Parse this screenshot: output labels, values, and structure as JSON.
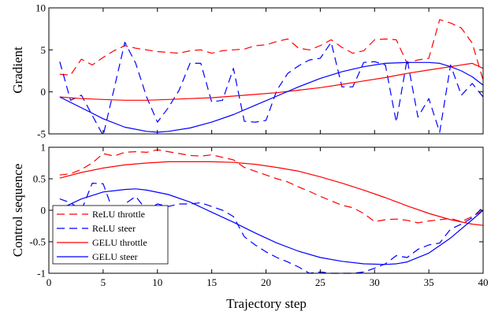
{
  "chart_data": [
    {
      "type": "line",
      "ylabel": "Gradient",
      "xlim": [
        0,
        40
      ],
      "ylim": [
        -5,
        10
      ],
      "x_ticks": [
        0,
        5,
        10,
        15,
        20,
        25,
        30,
        35,
        40
      ],
      "x_tick_labels": [
        "",
        "",
        "",
        "",
        "",
        "",
        "",
        "",
        ""
      ],
      "y_ticks": [
        -5,
        0,
        5,
        10
      ],
      "y_tick_labels": [
        "-5",
        "0",
        "5",
        "10"
      ],
      "series": [
        {
          "name": "ReLU throttle",
          "color": "#ff0000",
          "dash": "dashed",
          "x": [
            1,
            2,
            3,
            4,
            5,
            6,
            7,
            8,
            9,
            10,
            11,
            12,
            13,
            14,
            15,
            16,
            17,
            18,
            19,
            20,
            21,
            22,
            23,
            24,
            25,
            26,
            27,
            28,
            29,
            30,
            31,
            32,
            33,
            34,
            35,
            36,
            37,
            38,
            39,
            40
          ],
          "y": [
            2.1,
            2.0,
            3.9,
            3.2,
            4.1,
            4.9,
            5.5,
            5.2,
            5.0,
            4.8,
            4.7,
            4.6,
            4.9,
            5.0,
            4.6,
            4.9,
            5.0,
            5.1,
            5.5,
            5.6,
            6.0,
            6.3,
            5.2,
            5.0,
            5.5,
            6.2,
            5.3,
            4.6,
            4.9,
            6.2,
            6.3,
            6.2,
            3.4,
            3.8,
            4.0,
            8.6,
            8.2,
            7.6,
            5.8,
            1.4
          ]
        },
        {
          "name": "ReLU steer",
          "color": "#0000ff",
          "dash": "dashed",
          "x": [
            1,
            2,
            3,
            4,
            5,
            6,
            7,
            8,
            9,
            10,
            11,
            12,
            13,
            14,
            15,
            16,
            17,
            18,
            19,
            20,
            21,
            22,
            23,
            24,
            25,
            26,
            27,
            28,
            29,
            30,
            31,
            32,
            33,
            34,
            35,
            36,
            37,
            38,
            39,
            40
          ],
          "y": [
            3.6,
            -1.0,
            -0.4,
            -2.8,
            -5.2,
            0.3,
            5.9,
            3.4,
            -0.6,
            -3.6,
            -1.9,
            0.2,
            3.4,
            3.4,
            -1.2,
            -1.0,
            2.8,
            -3.5,
            -3.6,
            -3.4,
            0.2,
            2.2,
            3.1,
            3.8,
            4.0,
            5.9,
            0.6,
            0.6,
            3.5,
            3.6,
            3.2,
            -3.6,
            3.9,
            -3.0,
            -0.8,
            -4.8,
            3.2,
            -0.4,
            1.0,
            -0.6
          ]
        },
        {
          "name": "GELU throttle",
          "color": "#ff0000",
          "dash": "solid",
          "x": [
            1,
            3,
            5,
            7,
            9,
            11,
            13,
            15,
            17,
            19,
            21,
            23,
            25,
            27,
            29,
            31,
            33,
            35,
            37,
            39,
            40
          ],
          "y": [
            -0.6,
            -0.8,
            -0.9,
            -1.0,
            -1.0,
            -0.9,
            -0.8,
            -0.7,
            -0.5,
            -0.3,
            -0.1,
            0.2,
            0.5,
            0.9,
            1.3,
            1.7,
            2.2,
            2.6,
            3.0,
            3.4,
            2.8
          ]
        },
        {
          "name": "GELU steer",
          "color": "#0000ff",
          "dash": "solid",
          "x": [
            1,
            3,
            5,
            7,
            9,
            10,
            11,
            13,
            15,
            17,
            19,
            21,
            23,
            25,
            27,
            29,
            31,
            33,
            35,
            36,
            37,
            38,
            39,
            40
          ],
          "y": [
            -0.6,
            -1.9,
            -3.2,
            -4.2,
            -4.7,
            -4.8,
            -4.7,
            -4.3,
            -3.6,
            -2.7,
            -1.6,
            -0.5,
            0.6,
            1.6,
            2.4,
            3.0,
            3.4,
            3.5,
            3.5,
            3.4,
            3.0,
            2.5,
            1.8,
            0.8
          ]
        }
      ]
    },
    {
      "type": "line",
      "ylabel": "Control sequence",
      "xlabel": "Trajectory step",
      "xlim": [
        0,
        40
      ],
      "ylim": [
        -1,
        1
      ],
      "x_ticks": [
        0,
        5,
        10,
        15,
        20,
        25,
        30,
        35,
        40
      ],
      "x_tick_labels": [
        "0",
        "5",
        "10",
        "15",
        "20",
        "25",
        "30",
        "35",
        "40"
      ],
      "y_ticks": [
        -1,
        -0.5,
        0,
        0.5,
        1
      ],
      "y_tick_labels": [
        "-1",
        "-0.5",
        "0",
        "0.5",
        "1"
      ],
      "legend": {
        "position": "lower-left",
        "entries": [
          "ReLU throttle",
          "ReLU steer",
          "GELU throttle",
          "GELU steer"
        ]
      },
      "series": [
        {
          "name": "ReLU throttle",
          "color": "#ff0000",
          "dash": "dashed",
          "x": [
            1,
            2,
            3,
            4,
            5,
            6,
            7,
            8,
            9,
            10,
            11,
            12,
            13,
            14,
            15,
            16,
            17,
            18,
            19,
            20,
            21,
            22,
            23,
            24,
            25,
            26,
            27,
            28,
            29,
            30,
            31,
            32,
            33,
            34,
            35,
            36,
            37,
            38,
            39,
            40
          ],
          "y": [
            0.56,
            0.58,
            0.65,
            0.75,
            0.9,
            0.86,
            0.92,
            0.93,
            0.92,
            0.96,
            0.93,
            0.9,
            0.87,
            0.86,
            0.88,
            0.84,
            0.8,
            0.68,
            0.62,
            0.56,
            0.5,
            0.45,
            0.37,
            0.3,
            0.22,
            0.15,
            0.08,
            0.04,
            -0.05,
            -0.18,
            -0.15,
            -0.14,
            -0.16,
            -0.2,
            -0.17,
            -0.15,
            -0.13,
            -0.18,
            -0.1,
            0.0
          ]
        },
        {
          "name": "ReLU steer",
          "color": "#0000ff",
          "dash": "dashed",
          "x": [
            1,
            2,
            3,
            4,
            5,
            6,
            7,
            8,
            9,
            10,
            11,
            12,
            13,
            14,
            15,
            16,
            17,
            18,
            19,
            20,
            21,
            22,
            23,
            24,
            25,
            26,
            27,
            28,
            29,
            30,
            31,
            32,
            33,
            34,
            35,
            36,
            37,
            38,
            39,
            40
          ],
          "y": [
            0.18,
            0.12,
            0.0,
            0.43,
            0.42,
            -0.05,
            0.1,
            0.22,
            0.0,
            0.1,
            0.06,
            0.1,
            0.1,
            0.12,
            0.06,
            0.0,
            -0.1,
            -0.42,
            -0.55,
            -0.66,
            -0.75,
            -0.82,
            -0.9,
            -1.0,
            -0.98,
            -1.0,
            -1.0,
            -1.0,
            -0.98,
            -0.92,
            -0.85,
            -0.72,
            -0.75,
            -0.62,
            -0.55,
            -0.52,
            -0.3,
            -0.22,
            -0.12,
            0.05
          ]
        },
        {
          "name": "GELU throttle",
          "color": "#ff0000",
          "dash": "solid",
          "x": [
            1,
            3,
            5,
            7,
            9,
            11,
            13,
            15,
            17,
            19,
            21,
            23,
            25,
            27,
            29,
            31,
            33,
            35,
            37,
            39,
            40
          ],
          "y": [
            0.51,
            0.6,
            0.67,
            0.72,
            0.75,
            0.77,
            0.77,
            0.77,
            0.76,
            0.73,
            0.68,
            0.62,
            0.53,
            0.43,
            0.32,
            0.2,
            0.07,
            -0.05,
            -0.15,
            -0.22,
            -0.24
          ]
        },
        {
          "name": "GELU steer",
          "color": "#0000ff",
          "dash": "solid",
          "x": [
            1,
            3,
            5,
            7,
            8,
            9,
            11,
            13,
            15,
            17,
            19,
            21,
            23,
            25,
            27,
            29,
            31,
            32,
            33,
            35,
            37,
            39,
            40
          ],
          "y": [
            0.02,
            0.18,
            0.29,
            0.33,
            0.34,
            0.32,
            0.25,
            0.13,
            -0.03,
            -0.19,
            -0.36,
            -0.52,
            -0.65,
            -0.75,
            -0.81,
            -0.85,
            -0.86,
            -0.85,
            -0.82,
            -0.68,
            -0.44,
            -0.15,
            0.0
          ]
        }
      ]
    }
  ]
}
